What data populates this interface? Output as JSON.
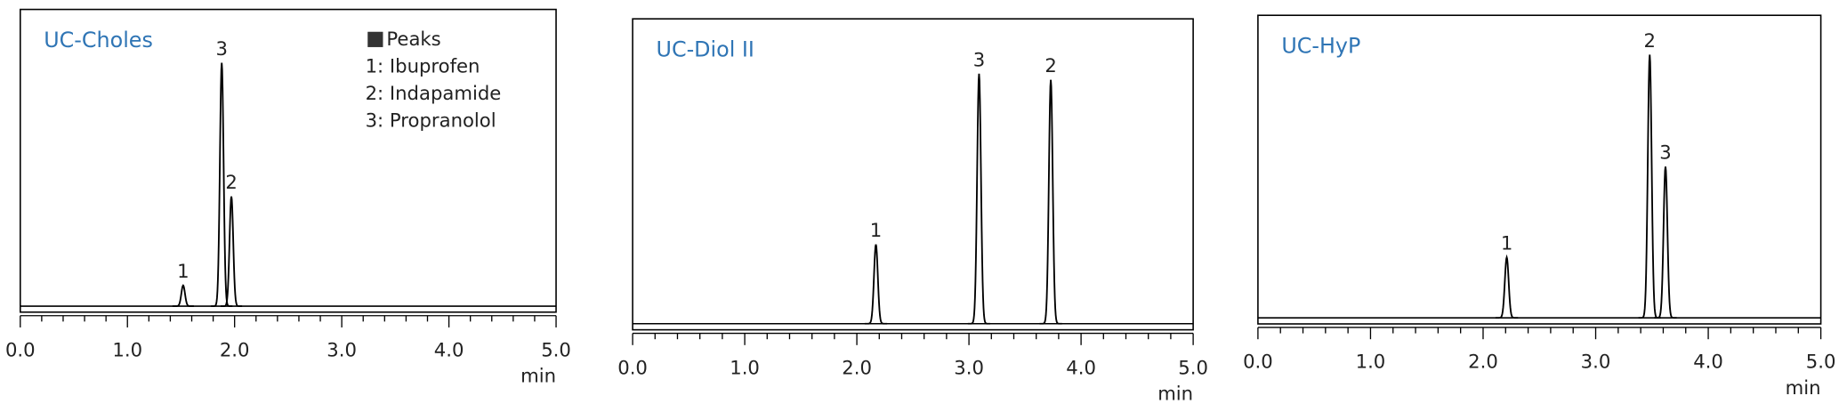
{
  "chart_data": [
    {
      "type": "line",
      "title": "UC-Choles",
      "xlabel": "min",
      "xlim": [
        0,
        5
      ],
      "ylim": [
        -2,
        100
      ],
      "xticks": [
        {
          "value": 0,
          "label": "0.0"
        },
        {
          "value": 1,
          "label": "1.0"
        },
        {
          "value": 2,
          "label": "2.0"
        },
        {
          "value": 3,
          "label": "3.0"
        },
        {
          "value": 4,
          "label": "4.0"
        },
        {
          "value": 5,
          "label": "5.0"
        }
      ],
      "peaks": [
        {
          "label": "1",
          "x": 1.52,
          "height": 7
        },
        {
          "label": "3",
          "x": 1.88,
          "height": 82
        },
        {
          "label": "2",
          "x": 1.97,
          "height": 37
        }
      ],
      "legend": {
        "title": "Peaks",
        "entries": [
          "1: Ibuprofen",
          "2: Indapamide",
          "3: Propranolol"
        ]
      }
    },
    {
      "type": "line",
      "title": "UC-Diol II",
      "xlabel": "min",
      "xlim": [
        0,
        5
      ],
      "ylim": [
        -2,
        100
      ],
      "xticks": [
        {
          "value": 0,
          "label": "0.0"
        },
        {
          "value": 1,
          "label": "1.0"
        },
        {
          "value": 2,
          "label": "2.0"
        },
        {
          "value": 3,
          "label": "3.0"
        },
        {
          "value": 4,
          "label": "4.0"
        },
        {
          "value": 5,
          "label": "5.0"
        }
      ],
      "peaks": [
        {
          "label": "1",
          "x": 2.17,
          "height": 26
        },
        {
          "label": "3",
          "x": 3.09,
          "height": 82
        },
        {
          "label": "2",
          "x": 3.73,
          "height": 80
        }
      ]
    },
    {
      "type": "line",
      "title": "UC-HyP",
      "xlabel": "min",
      "xlim": [
        0,
        5
      ],
      "ylim": [
        -2,
        100
      ],
      "xticks": [
        {
          "value": 0,
          "label": "0.0"
        },
        {
          "value": 1,
          "label": "1.0"
        },
        {
          "value": 2,
          "label": "2.0"
        },
        {
          "value": 3,
          "label": "3.0"
        },
        {
          "value": 4,
          "label": "4.0"
        },
        {
          "value": 5,
          "label": "5.0"
        }
      ],
      "peaks": [
        {
          "label": "1",
          "x": 2.21,
          "height": 20
        },
        {
          "label": "2",
          "x": 3.48,
          "height": 87
        },
        {
          "label": "3",
          "x": 3.62,
          "height": 50
        }
      ]
    }
  ]
}
